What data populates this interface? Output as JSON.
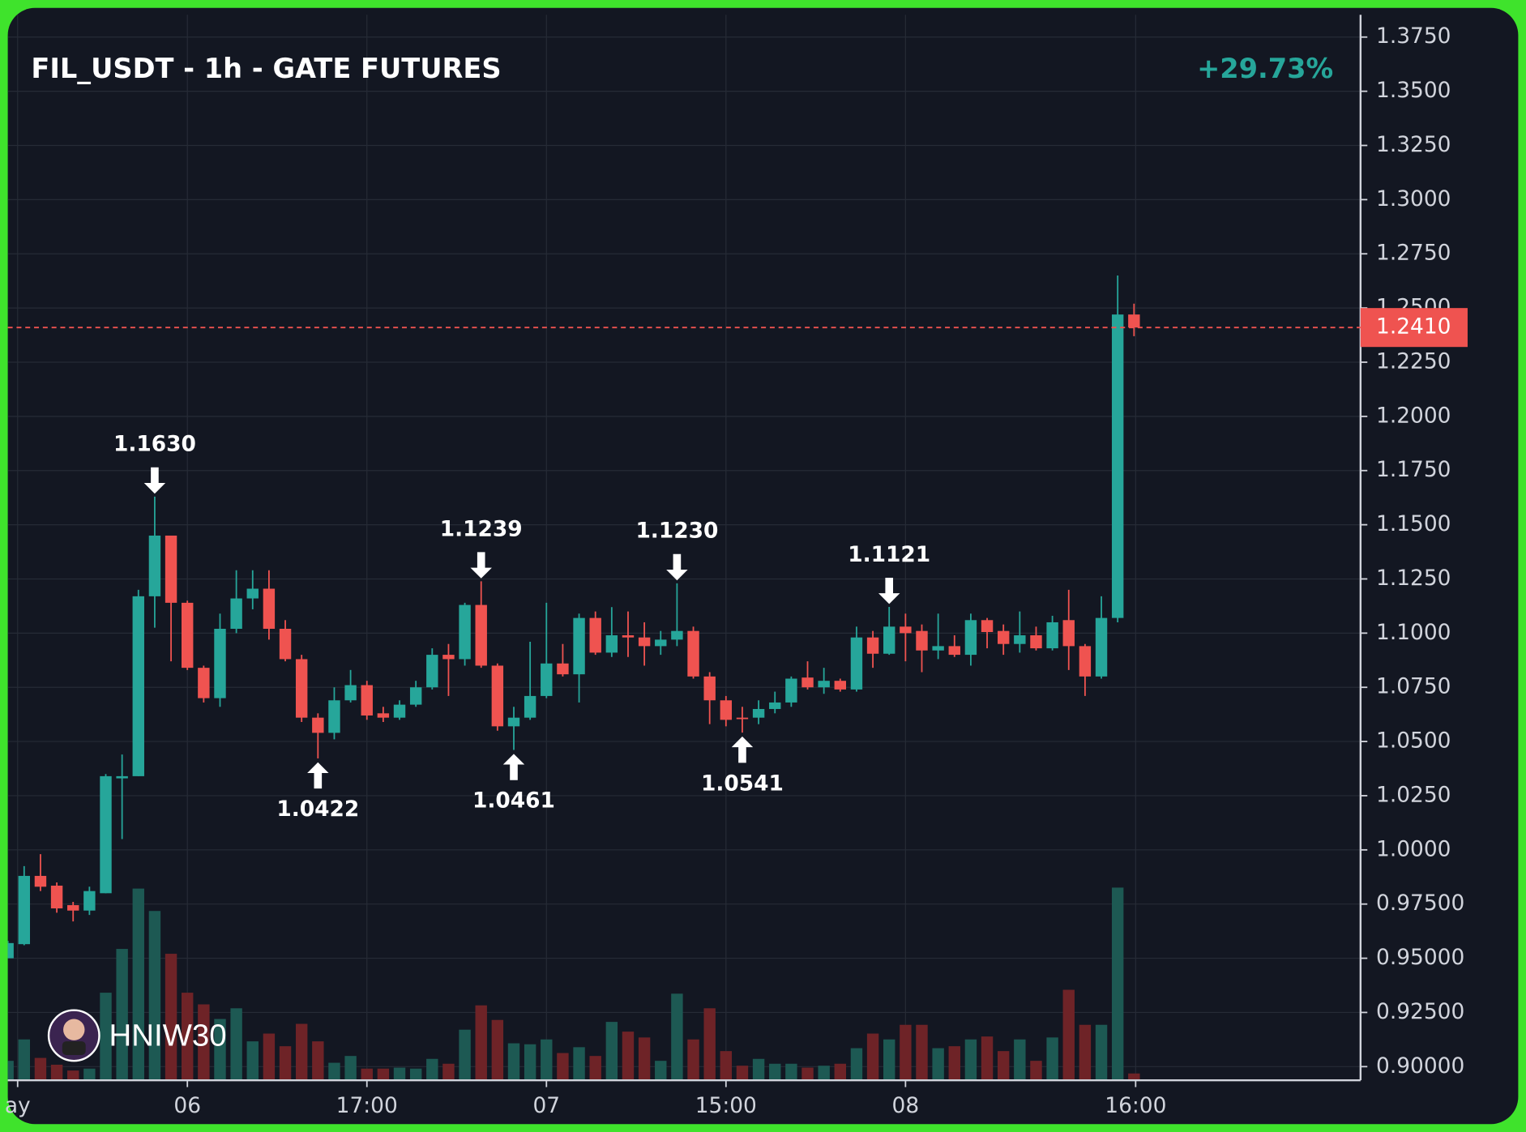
{
  "chart_data": {
    "type": "candlestick",
    "title": "FIL_USDT - 1h - GATE FUTURES",
    "change": {
      "value": 29.73,
      "label": "+29.73%"
    },
    "watermark": "HNIW30",
    "up_color": "#26a69a",
    "down_color": "#ef5350",
    "volume_up_color": "#1d5953",
    "volume_down_color": "#6e2327",
    "grid": true,
    "x": [
      0,
      1,
      2,
      3,
      4,
      5,
      6,
      7,
      8,
      9,
      10,
      11,
      12,
      13,
      14,
      15,
      16,
      17,
      18,
      19,
      20,
      21,
      22,
      23,
      24,
      25,
      26,
      27,
      28,
      29,
      30,
      31,
      32,
      33,
      34,
      35,
      36,
      37,
      38,
      39,
      40,
      41,
      42,
      43,
      44,
      45,
      46,
      47,
      48,
      49,
      50,
      51,
      52,
      53,
      54,
      55,
      56,
      57,
      58,
      59,
      60,
      61,
      62,
      63,
      64,
      65,
      66,
      67,
      68,
      69
    ],
    "open": [
      0.95,
      0.9565,
      0.988,
      0.9835,
      0.9745,
      0.972,
      0.98,
      1.033,
      1.034,
      1.117,
      1.145,
      1.114,
      1.084,
      1.07,
      1.102,
      1.116,
      1.1205,
      1.102,
      1.088,
      1.061,
      1.054,
      1.069,
      1.076,
      1.063,
      1.061,
      1.067,
      1.075,
      1.09,
      1.088,
      1.113,
      1.085,
      1.057,
      1.061,
      1.071,
      1.086,
      1.081,
      1.107,
      1.091,
      1.099,
      1.098,
      1.094,
      1.097,
      1.101,
      1.08,
      1.069,
      1.061,
      1.061,
      1.065,
      1.068,
      1.0795,
      1.075,
      1.078,
      1.074,
      1.098,
      1.0905,
      1.103,
      1.101,
      1.092,
      1.094,
      1.09,
      1.106,
      1.101,
      1.095,
      1.099,
      1.093,
      1.106,
      1.094,
      1.08,
      1.107,
      1.247
    ],
    "high": [
      0.958,
      0.9925,
      0.998,
      0.985,
      0.976,
      0.983,
      1.035,
      1.044,
      1.12,
      1.163,
      1.145,
      1.115,
      1.085,
      1.109,
      1.129,
      1.129,
      1.129,
      1.106,
      1.09,
      1.063,
      1.075,
      1.083,
      1.078,
      1.066,
      1.069,
      1.078,
      1.093,
      1.095,
      1.114,
      1.1239,
      1.086,
      1.066,
      1.096,
      1.114,
      1.095,
      1.109,
      1.11,
      1.112,
      1.11,
      1.105,
      1.101,
      1.123,
      1.103,
      1.082,
      1.071,
      1.066,
      1.069,
      1.073,
      1.08,
      1.087,
      1.084,
      1.079,
      1.103,
      1.101,
      1.1121,
      1.109,
      1.104,
      1.109,
      1.099,
      1.109,
      1.107,
      1.104,
      1.11,
      1.103,
      1.108,
      1.12,
      1.095,
      1.117,
      1.265,
      1.252
    ],
    "low": [
      0.95,
      0.956,
      0.981,
      0.971,
      0.967,
      0.97,
      0.98,
      1.005,
      1.034,
      1.1025,
      1.087,
      1.083,
      1.068,
      1.066,
      1.1,
      1.111,
      1.097,
      1.087,
      1.059,
      1.0422,
      1.051,
      1.068,
      1.06,
      1.059,
      1.06,
      1.066,
      1.074,
      1.071,
      1.085,
      1.084,
      1.055,
      1.0461,
      1.06,
      1.07,
      1.08,
      1.068,
      1.09,
      1.089,
      1.089,
      1.085,
      1.09,
      1.094,
      1.079,
      1.058,
      1.057,
      1.0541,
      1.058,
      1.063,
      1.066,
      1.074,
      1.072,
      1.073,
      1.073,
      1.084,
      1.09,
      1.087,
      1.082,
      1.088,
      1.089,
      1.085,
      1.093,
      1.09,
      1.091,
      1.092,
      1.092,
      1.083,
      1.071,
      1.079,
      1.105,
      1.237
    ],
    "close": [
      0.957,
      0.988,
      0.983,
      0.973,
      0.972,
      0.981,
      1.034,
      1.034,
      1.117,
      1.145,
      1.114,
      1.084,
      1.07,
      1.102,
      1.116,
      1.1205,
      1.102,
      1.088,
      1.061,
      1.054,
      1.069,
      1.076,
      1.062,
      1.061,
      1.067,
      1.075,
      1.09,
      1.088,
      1.113,
      1.085,
      1.057,
      1.061,
      1.071,
      1.086,
      1.081,
      1.107,
      1.091,
      1.099,
      1.098,
      1.094,
      1.097,
      1.101,
      1.08,
      1.069,
      1.06,
      1.0605,
      1.065,
      1.068,
      1.079,
      1.075,
      1.078,
      1.074,
      1.098,
      1.0905,
      1.103,
      1.1,
      1.092,
      1.094,
      1.09,
      1.106,
      1.1005,
      1.095,
      1.099,
      1.093,
      1.105,
      1.094,
      1.08,
      1.107,
      1.247,
      1.241
    ],
    "volume": [
      20,
      42,
      23,
      16,
      10,
      12,
      90,
      135,
      197,
      174,
      130,
      90,
      78,
      63,
      74,
      40,
      48,
      35,
      58,
      40,
      18,
      25,
      12,
      12,
      13,
      12,
      22,
      17,
      52,
      77,
      62,
      38,
      37,
      42,
      28,
      34,
      25,
      60,
      50,
      44,
      20,
      89,
      42,
      74,
      30,
      15,
      22,
      17,
      17,
      13,
      15,
      17,
      33,
      48,
      42,
      57,
      57,
      33,
      35,
      42,
      45,
      30,
      42,
      20,
      44,
      93,
      57,
      57,
      198,
      7
    ],
    "xlim": [
      -0.48,
      82.88
    ],
    "xticks": [
      {
        "value": 0.6,
        "label": "ay"
      },
      {
        "value": 11,
        "label": "06"
      },
      {
        "value": 22,
        "label": "17:00"
      },
      {
        "value": 33,
        "label": "07"
      },
      {
        "value": 44,
        "label": "15:00"
      },
      {
        "value": 55,
        "label": "08"
      },
      {
        "value": 69.1,
        "label": "16:00"
      }
    ],
    "ylim": [
      0.8937,
      1.3853
    ],
    "yticks": [
      {
        "value": 0.9,
        "label": "0.90000"
      },
      {
        "value": 0.925,
        "label": "0.92500"
      },
      {
        "value": 0.95,
        "label": "0.95000"
      },
      {
        "value": 0.975,
        "label": "0.97500"
      },
      {
        "value": 1,
        "label": "1.0000"
      },
      {
        "value": 1.025,
        "label": "1.0250"
      },
      {
        "value": 1.05,
        "label": "1.0500"
      },
      {
        "value": 1.075,
        "label": "1.0750"
      },
      {
        "value": 1.1,
        "label": "1.1000"
      },
      {
        "value": 1.125,
        "label": "1.1250"
      },
      {
        "value": 1.15,
        "label": "1.1500"
      },
      {
        "value": 1.175,
        "label": "1.1750"
      },
      {
        "value": 1.2,
        "label": "1.2000"
      },
      {
        "value": 1.225,
        "label": "1.2250"
      },
      {
        "value": 1.25,
        "label": "1.2500"
      },
      {
        "value": 1.275,
        "label": "1.2750"
      },
      {
        "value": 1.3,
        "label": "1.3000"
      },
      {
        "value": 1.325,
        "label": "1.3250"
      },
      {
        "value": 1.35,
        "label": "1.3500"
      },
      {
        "value": 1.375,
        "label": "1.3750"
      }
    ],
    "last_price": {
      "value": 1.241,
      "label": "1.2410"
    },
    "annotations": [
      {
        "x": 9,
        "value": 1.163,
        "label": "1.1630",
        "kind": "high"
      },
      {
        "x": 19,
        "value": 1.0422,
        "label": "1.0422",
        "kind": "low"
      },
      {
        "x": 29,
        "value": 1.1239,
        "label": "1.1239",
        "kind": "high"
      },
      {
        "x": 31,
        "value": 1.0461,
        "label": "1.0461",
        "kind": "low"
      },
      {
        "x": 41,
        "value": 1.123,
        "label": "1.1230",
        "kind": "high"
      },
      {
        "x": 45,
        "value": 1.0541,
        "label": "1.0541",
        "kind": "low"
      },
      {
        "x": 54,
        "value": 1.1121,
        "label": "1.1121",
        "kind": "high"
      }
    ]
  }
}
